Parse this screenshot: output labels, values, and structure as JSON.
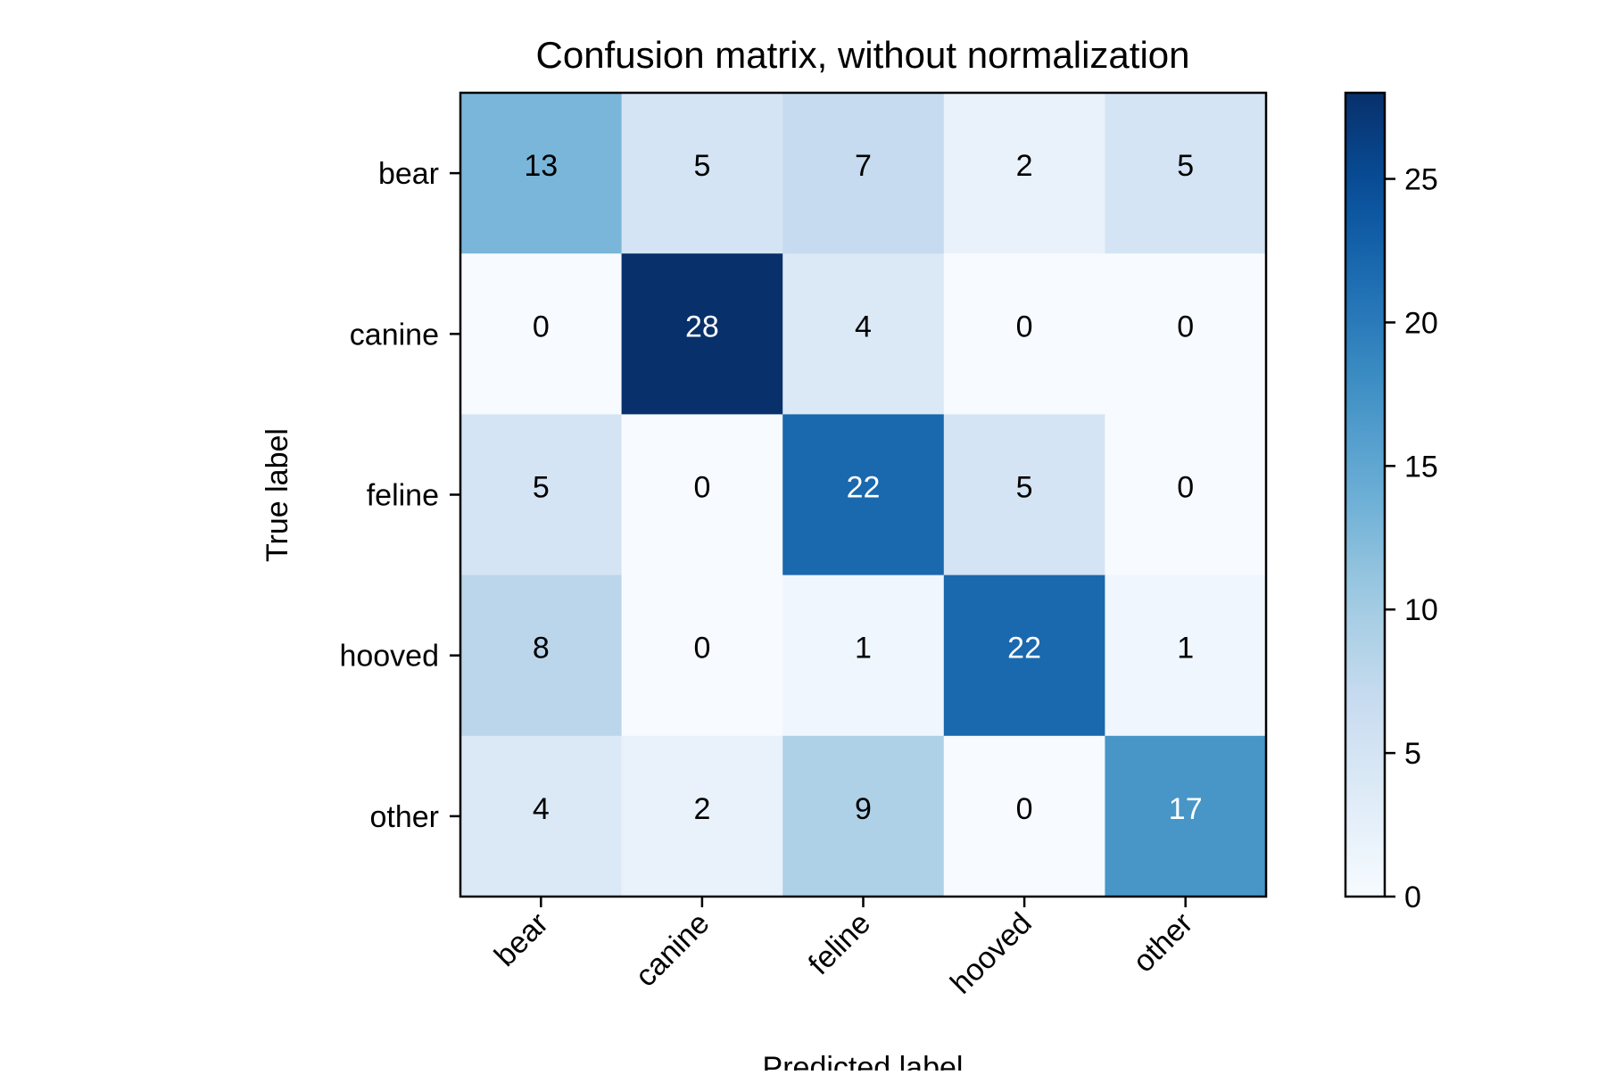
{
  "chart_data": {
    "type": "heatmap",
    "title": "Confusion matrix, without normalization",
    "xlabel": "Predicted label",
    "ylabel": "True label",
    "x_categories": [
      "bear",
      "canine",
      "feline",
      "hooved",
      "other"
    ],
    "y_categories": [
      "bear",
      "canine",
      "feline",
      "hooved",
      "other"
    ],
    "values": [
      [
        13,
        5,
        7,
        2,
        5
      ],
      [
        0,
        28,
        4,
        0,
        0
      ],
      [
        5,
        0,
        22,
        5,
        0
      ],
      [
        8,
        0,
        1,
        22,
        1
      ],
      [
        4,
        2,
        9,
        0,
        17
      ]
    ],
    "colormap": "Blues",
    "color_range": [
      0,
      28
    ],
    "colorbar_ticks": [
      0,
      5,
      10,
      15,
      20,
      25
    ],
    "colorbar_tick_labels": [
      "0",
      "5",
      "10",
      "15",
      "20",
      "25"
    ],
    "grid": false,
    "colorbar_placement": "right"
  }
}
